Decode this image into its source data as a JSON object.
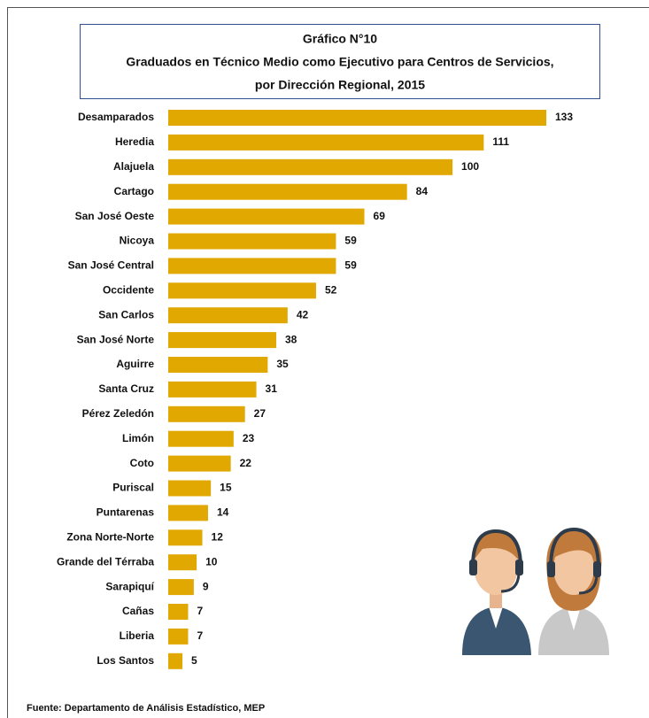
{
  "chart_data": {
    "type": "bar",
    "orientation": "horizontal",
    "title": [
      "Gráfico N°10",
      "Graduados en Técnico Medio como Ejecutivo para Centros de Servicios,",
      "por Dirección Regional, 2015"
    ],
    "categories": [
      "Desamparados",
      "Heredia",
      "Alajuela",
      "Cartago",
      "San José Oeste",
      "Nicoya",
      "San José Central",
      "Occidente",
      "San Carlos",
      "San José Norte",
      "Aguirre",
      "Santa Cruz",
      "Pérez Zeledón",
      "Limón",
      "Coto",
      "Puriscal",
      "Puntarenas",
      "Zona Norte-Norte",
      "Grande del Térraba",
      "Sarapiquí",
      "Cañas",
      "Liberia",
      "Los Santos"
    ],
    "values": [
      133,
      111,
      100,
      84,
      69,
      59,
      59,
      52,
      42,
      38,
      35,
      31,
      27,
      23,
      22,
      15,
      14,
      12,
      10,
      9,
      7,
      7,
      5
    ],
    "color": "#e0a800",
    "source": "Fuente: Departamento de Análisis Estadístico, MEP"
  }
}
